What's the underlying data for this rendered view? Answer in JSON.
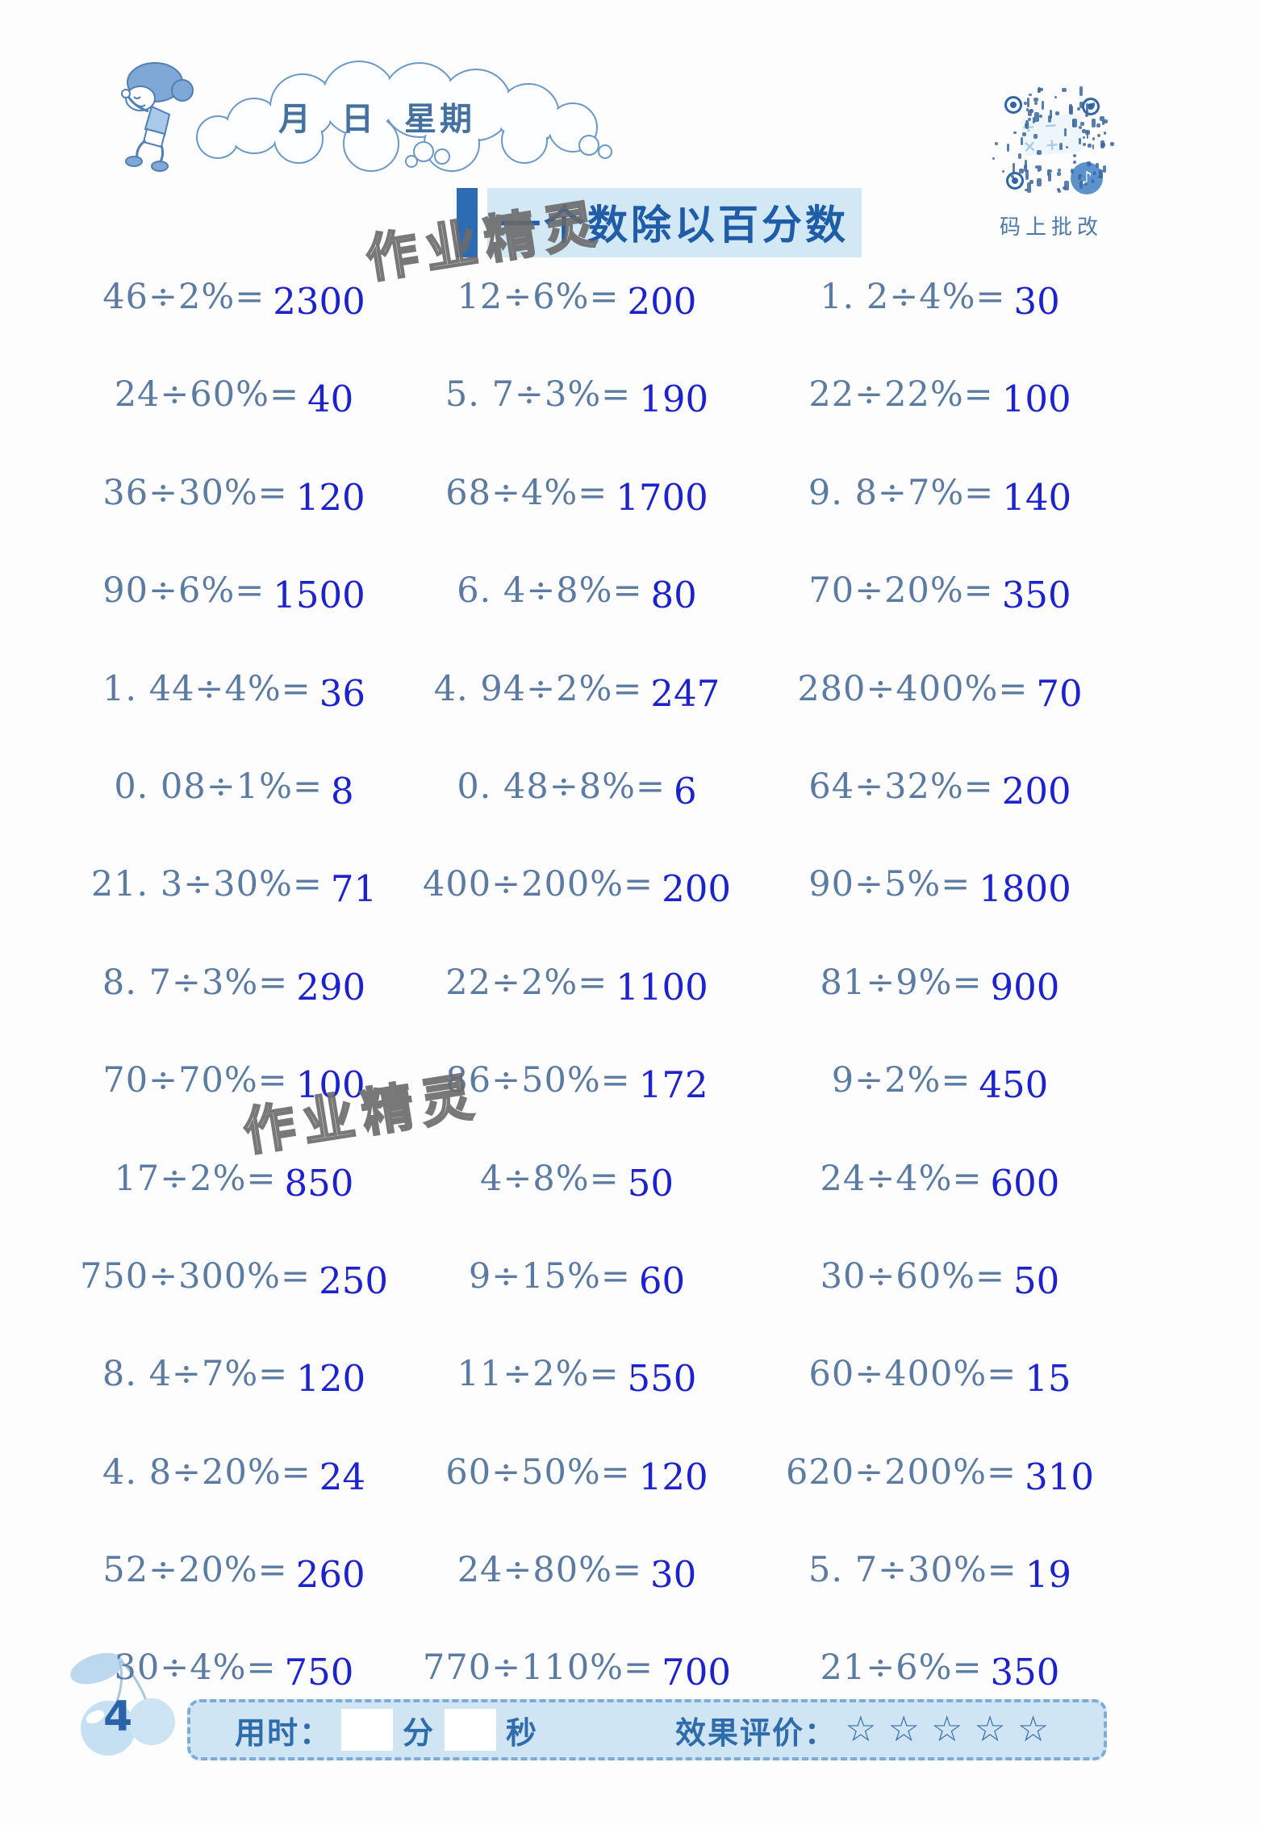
{
  "header": {
    "month_label": "月",
    "day_label": "日",
    "week_label": "星期"
  },
  "qr": {
    "caption": "码上批改",
    "calc_symbols": "÷ − × +",
    "logo_glyph": "♪"
  },
  "title": {
    "text": "一个数除以百分数"
  },
  "watermark": {
    "text": "作业精灵"
  },
  "problems": [
    [
      {
        "q": "46÷2%=",
        "a": "2300"
      },
      {
        "q": "12÷6%=",
        "a": "200"
      },
      {
        "q": "1. 2÷4%=",
        "a": "30"
      }
    ],
    [
      {
        "q": "24÷60%=",
        "a": "40"
      },
      {
        "q": "5. 7÷3%=",
        "a": "190"
      },
      {
        "q": "22÷22%=",
        "a": "100"
      }
    ],
    [
      {
        "q": "36÷30%=",
        "a": "120"
      },
      {
        "q": "68÷4%=",
        "a": "1700"
      },
      {
        "q": "9. 8÷7%=",
        "a": "140"
      }
    ],
    [
      {
        "q": "90÷6%=",
        "a": "1500"
      },
      {
        "q": "6. 4÷8%=",
        "a": "80"
      },
      {
        "q": "70÷20%=",
        "a": "350"
      }
    ],
    [
      {
        "q": "1. 44÷4%=",
        "a": "36"
      },
      {
        "q": "4. 94÷2%=",
        "a": "247"
      },
      {
        "q": "280÷400%=",
        "a": "70"
      }
    ],
    [
      {
        "q": "0. 08÷1%=",
        "a": "8"
      },
      {
        "q": "0. 48÷8%=",
        "a": "6"
      },
      {
        "q": "64÷32%=",
        "a": "200"
      }
    ],
    [
      {
        "q": "21. 3÷30%=",
        "a": "71"
      },
      {
        "q": "400÷200%=",
        "a": "200"
      },
      {
        "q": "90÷5%=",
        "a": "1800"
      }
    ],
    [
      {
        "q": "8. 7÷3%=",
        "a": "290"
      },
      {
        "q": "22÷2%=",
        "a": "1100"
      },
      {
        "q": "81÷9%=",
        "a": "900"
      }
    ],
    [
      {
        "q": "70÷70%=",
        "a": "100"
      },
      {
        "q": "86÷50%=",
        "a": "172"
      },
      {
        "q": "9÷2%=",
        "a": "450"
      }
    ],
    [
      {
        "q": "17÷2%=",
        "a": "850"
      },
      {
        "q": "4÷8%=",
        "a": "50"
      },
      {
        "q": "24÷4%=",
        "a": "600"
      }
    ],
    [
      {
        "q": "750÷300%=",
        "a": "250"
      },
      {
        "q": "9÷15%=",
        "a": "60"
      },
      {
        "q": "30÷60%=",
        "a": "50"
      }
    ],
    [
      {
        "q": "8. 4÷7%=",
        "a": "120"
      },
      {
        "q": "11÷2%=",
        "a": "550"
      },
      {
        "q": "60÷400%=",
        "a": "15"
      }
    ],
    [
      {
        "q": "4. 8÷20%=",
        "a": "24"
      },
      {
        "q": "60÷50%=",
        "a": "120"
      },
      {
        "q": "620÷200%=",
        "a": "310"
      }
    ],
    [
      {
        "q": "52÷20%=",
        "a": "260"
      },
      {
        "q": "24÷80%=",
        "a": "30"
      },
      {
        "q": "5. 7÷30%=",
        "a": "19"
      }
    ],
    [
      {
        "q": "30÷4%=",
        "a": "750"
      },
      {
        "q": "770÷110%=",
        "a": "700"
      },
      {
        "q": "21÷6%=",
        "a": "350"
      }
    ]
  ],
  "footer": {
    "page_number": "4",
    "time_label": "用时：",
    "minutes_label": "分",
    "seconds_label": "秒",
    "rating_label": "效果评价：",
    "stars": [
      "☆",
      "☆",
      "☆",
      "☆",
      "☆"
    ]
  },
  "colors": {
    "accent_blue": "#2d6cb2",
    "title_highlight": "#d3e8f5",
    "problem_text": "#5b7ba3",
    "answer_text": "#1d23cc",
    "footer_bg": "#cfe5f4"
  }
}
